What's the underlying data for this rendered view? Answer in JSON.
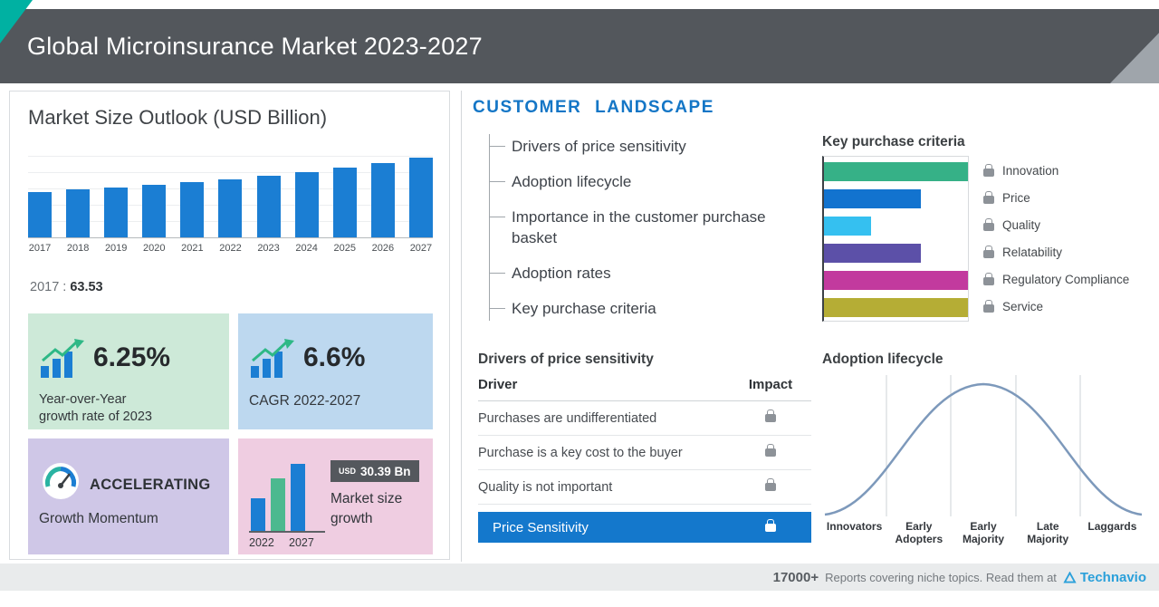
{
  "header": {
    "title": "Global Microinsurance Market 2023-2027"
  },
  "market_size": {
    "title": "Market Size Outlook (USD Billion)",
    "base_year": "2017 :",
    "base_value": "63.53",
    "yoy_value": "6.25%",
    "yoy_line1": "Year-over-Year",
    "yoy_line2": "growth rate of 2023",
    "cagr_value": "6.6%",
    "cagr_label": "CAGR 2022-2027",
    "momentum_title": "ACCELERATING",
    "momentum_label": "Growth Momentum",
    "growth_badge_unit": "USD",
    "growth_badge_value": "30.39 Bn",
    "growth_line1": "Market size",
    "growth_line2": "growth",
    "growth_year_start": "2022",
    "growth_year_end": "2027"
  },
  "customer_landscape": {
    "title": "CUSTOMER LANDSCAPE",
    "items": [
      "Drivers of price sensitivity",
      "Adoption lifecycle",
      "Importance in the customer purchase basket",
      "Adoption rates",
      "Key purchase criteria"
    ]
  },
  "price_sensitivity": {
    "title": "Drivers of price sensitivity",
    "driver_col": "Driver",
    "impact_col": "Impact",
    "rows": [
      "Purchases are undifferentiated",
      "Purchase is a key cost to the buyer",
      "Quality is not important"
    ],
    "highlight_row": "Price Sensitivity"
  },
  "adoption_lifecycle": {
    "title": "Adoption lifecycle",
    "stages": [
      "Innovators",
      "Early Adopters",
      "Early Majority",
      "Late Majority",
      "Laggards"
    ]
  },
  "footer": {
    "count": "17000+",
    "text": "Reports covering niche topics. Read them at",
    "brand": "Technavio"
  },
  "colors": {
    "header_gray": "#53575c",
    "accent_teal": "#00b1a2",
    "bar_blue": "#1b7ed3",
    "landscape_blue": "#1476c6",
    "highlight_row_bg": "#1478cc"
  },
  "chart_data": [
    {
      "type": "bar",
      "title": "Market Size Outlook (USD Billion)",
      "categories": [
        "2017",
        "2018",
        "2019",
        "2020",
        "2021",
        "2022",
        "2023",
        "2024",
        "2025",
        "2026",
        "2027"
      ],
      "values": [
        63.53,
        66.6,
        69.9,
        73.2,
        76.9,
        80.8,
        85.9,
        91.4,
        97.4,
        103.9,
        111.2
      ],
      "ylabel": "USD Billion",
      "ylim": [
        0,
        120
      ],
      "labeled_point": {
        "x": "2017",
        "y": 63.53
      },
      "grid": true,
      "bar_color": "#1b7ed3"
    },
    {
      "type": "bar",
      "orientation": "horizontal",
      "title": "Key purchase criteria",
      "categories": [
        "Innovation",
        "Price",
        "Quality",
        "Relatability",
        "Regulatory Compliance",
        "Service"
      ],
      "values": [
        100,
        67,
        33,
        67,
        100,
        100
      ],
      "value_note": "relative bar length, percent of longest bar (axis unlabeled)",
      "colors": [
        "#36b187",
        "#1273cf",
        "#35c0f0",
        "#5c50a8",
        "#c23a9e",
        "#b5ad35"
      ],
      "legend_position": "right"
    },
    {
      "type": "bar",
      "title": "Market size growth",
      "categories": [
        "2022",
        "2027"
      ],
      "values": [
        80.8,
        111.2
      ],
      "annotation": "USD 30.39 Bn",
      "note": "growth of USD 30.39 Bn between 2022 and 2027"
    },
    {
      "type": "line",
      "title": "Adoption lifecycle",
      "shape": "bell_curve",
      "categories": [
        "Innovators",
        "Early Adopters",
        "Early Majority",
        "Late Majority",
        "Laggards"
      ]
    }
  ]
}
